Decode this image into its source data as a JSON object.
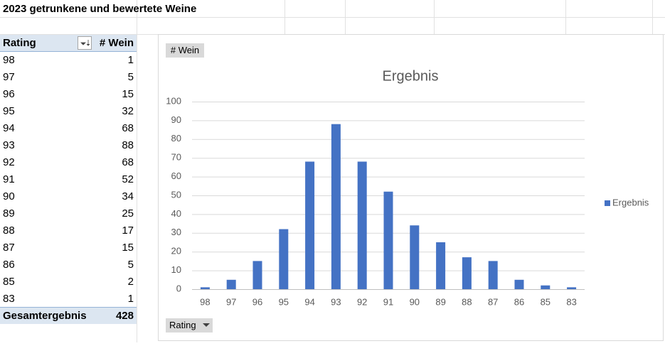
{
  "sheet_title": "2023 getrunkene und bewertete Weine",
  "pivot_table": {
    "headers": [
      "Rating",
      "# Wein"
    ],
    "rows": [
      [
        98,
        1
      ],
      [
        97,
        5
      ],
      [
        96,
        15
      ],
      [
        95,
        32
      ],
      [
        94,
        68
      ],
      [
        93,
        88
      ],
      [
        92,
        68
      ],
      [
        91,
        52
      ],
      [
        90,
        34
      ],
      [
        89,
        25
      ],
      [
        88,
        17
      ],
      [
        87,
        15
      ],
      [
        86,
        5
      ],
      [
        85,
        2
      ],
      [
        83,
        1
      ]
    ],
    "total_label": "Gesamtergebnis",
    "total": 428
  },
  "chart_data": {
    "type": "bar",
    "title": "Ergebnis",
    "value_field_button": "# Wein",
    "axis_field_button": "Rating",
    "categories": [
      "98",
      "97",
      "96",
      "95",
      "94",
      "93",
      "92",
      "91",
      "90",
      "89",
      "88",
      "87",
      "86",
      "85",
      "83"
    ],
    "series": [
      {
        "name": "Ergebnis",
        "color": "#4472c4",
        "values": [
          1,
          5,
          15,
          32,
          68,
          88,
          68,
          52,
          34,
          25,
          17,
          15,
          5,
          2,
          1
        ]
      }
    ],
    "ylim": [
      0,
      100
    ],
    "yticks": [
      0,
      10,
      20,
      30,
      40,
      50,
      60,
      70,
      80,
      90,
      100
    ],
    "grid": true,
    "legend": "right"
  }
}
